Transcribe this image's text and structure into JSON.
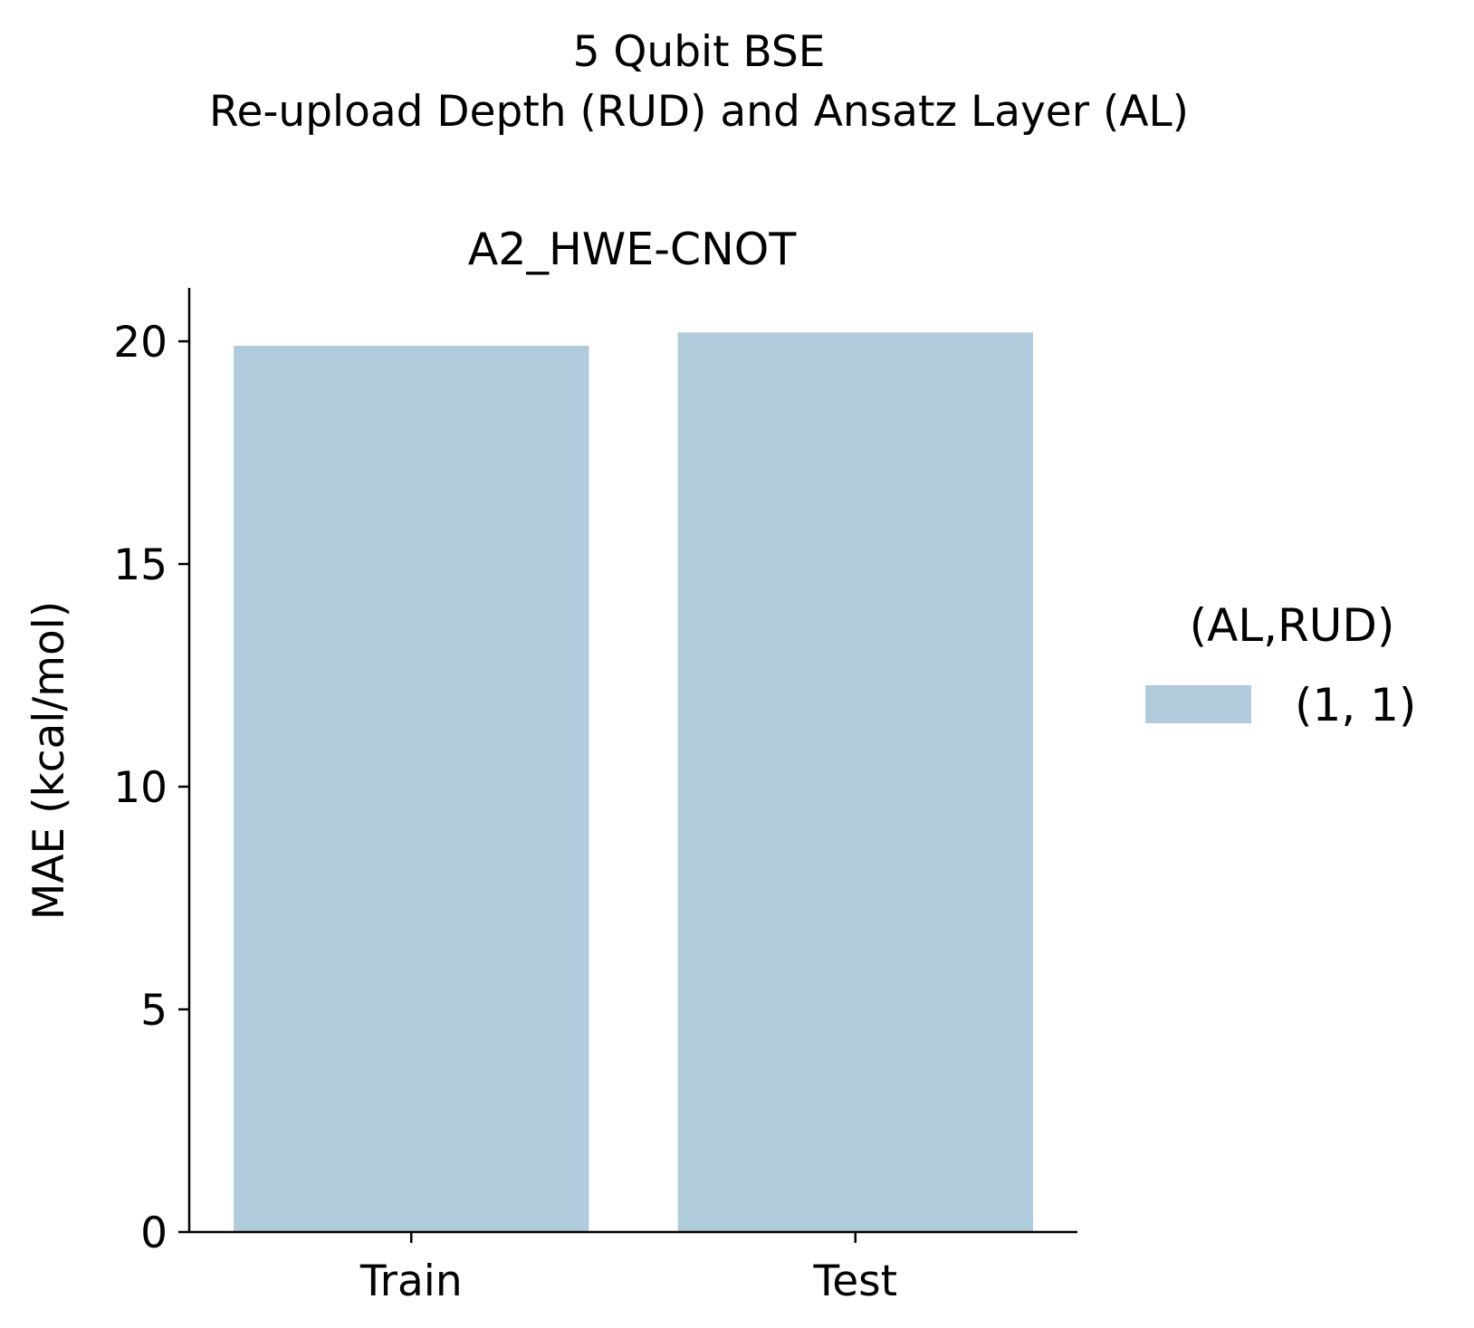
{
  "chart_data": {
    "type": "bar",
    "suptitle_lines": [
      "5 Qubit BSE",
      "Re-upload Depth (RUD) and Ansatz Layer (AL)"
    ],
    "title": "A2_HWE-CNOT",
    "xlabel": "",
    "ylabel": "MAE (kcal/mol)",
    "categories": [
      "Train",
      "Test"
    ],
    "series": [
      {
        "name": "(1, 1)",
        "values": [
          19.9,
          20.2
        ],
        "color": "#b0cbdc"
      }
    ],
    "ylim": [
      0,
      21.2
    ],
    "yticks": [
      0,
      5,
      10,
      15,
      20
    ],
    "legend": {
      "title": "(AL,RUD)",
      "placement": "right, outside plot"
    },
    "grid": false
  }
}
